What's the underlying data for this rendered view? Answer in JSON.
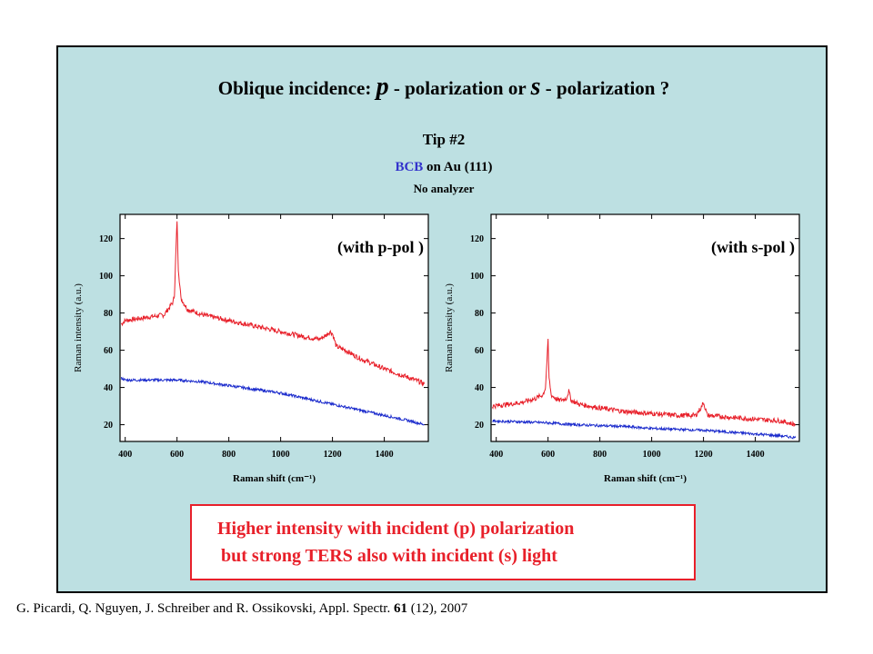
{
  "slide": {
    "title_prefix": "Oblique incidence: ",
    "title_p": "p",
    "title_mid": " - polarization or ",
    "title_s": "s",
    "title_suffix": " - polarization ?",
    "tip": "Tip #2",
    "sample_bcb": "BCB",
    "sample_rest": " on Au (111)",
    "analyzer": "No analyzer",
    "callout_line1": "Higher intensity with incident (p) polarization",
    "callout_line2": "but strong TERS also with incident (s) light",
    "citation_authors": "G. Picardi, Q. Nguyen, J. Schreiber and R. Ossikovski, Appl. Spectr. ",
    "citation_volume": "61",
    "citation_rest": " (12), 2007"
  },
  "colors": {
    "background": "#bde0e2",
    "red_series": "#e8202a",
    "blue_series": "#1a2acc",
    "accent_text": "#3333cc"
  },
  "chart_data": [
    {
      "type": "line",
      "label": "(with p-pol )",
      "xlabel": "Raman shift (cm⁻¹)",
      "ylabel": "Raman intensity (a.u.)",
      "xlim": [
        380,
        1570
      ],
      "ylim": [
        11,
        133
      ],
      "xticks": [
        400,
        600,
        800,
        1000,
        1200,
        1400
      ],
      "yticks": [
        20,
        40,
        60,
        80,
        100,
        120
      ],
      "series": [
        {
          "color": "#e8202a",
          "x": [
            385,
            400,
            450,
            500,
            550,
            575,
            585,
            590,
            595,
            600,
            605,
            615,
            640,
            680,
            700,
            800,
            900,
            1000,
            1100,
            1150,
            1175,
            1190,
            1200,
            1215,
            1250,
            1300,
            1400,
            1500,
            1555
          ],
          "y": [
            74,
            76,
            77,
            78,
            79,
            84,
            86,
            90,
            110,
            130,
            104,
            88,
            82,
            80,
            79,
            76,
            73,
            70,
            67,
            66,
            68,
            70,
            69,
            62,
            60,
            56,
            50,
            45,
            42
          ]
        },
        {
          "color": "#1a2acc",
          "x": [
            385,
            400,
            500,
            600,
            700,
            800,
            900,
            1000,
            1100,
            1200,
            1300,
            1400,
            1500,
            1555
          ],
          "y": [
            45,
            44,
            44,
            44,
            43,
            41,
            39,
            37,
            34,
            31,
            28,
            25,
            22,
            20
          ]
        }
      ]
    },
    {
      "type": "line",
      "label": "(with s-pol )",
      "xlabel": "Raman shift (cm⁻¹)",
      "ylabel": "Raman intensity (a.u.)",
      "xlim": [
        380,
        1570
      ],
      "ylim": [
        11,
        133
      ],
      "xticks": [
        400,
        600,
        800,
        1000,
        1200,
        1400
      ],
      "yticks": [
        20,
        40,
        60,
        80,
        100,
        120
      ],
      "series": [
        {
          "color": "#e8202a",
          "x": [
            385,
            450,
            500,
            550,
            580,
            590,
            596,
            600,
            604,
            612,
            640,
            670,
            680,
            690,
            720,
            800,
            900,
            1000,
            1100,
            1170,
            1190,
            1200,
            1215,
            1300,
            1400,
            1500,
            1555
          ],
          "y": [
            30,
            31,
            32,
            34,
            36,
            40,
            55,
            65,
            45,
            36,
            33,
            34,
            38,
            33,
            31,
            29,
            27,
            26,
            25,
            25,
            29,
            32,
            25,
            24,
            23,
            22,
            20
          ]
        },
        {
          "color": "#1a2acc",
          "x": [
            385,
            500,
            600,
            700,
            800,
            900,
            1000,
            1100,
            1200,
            1300,
            1400,
            1500,
            1555
          ],
          "y": [
            22,
            21.5,
            21,
            20,
            19.5,
            19,
            18,
            17.5,
            17,
            16,
            15,
            14,
            13
          ]
        }
      ]
    }
  ]
}
